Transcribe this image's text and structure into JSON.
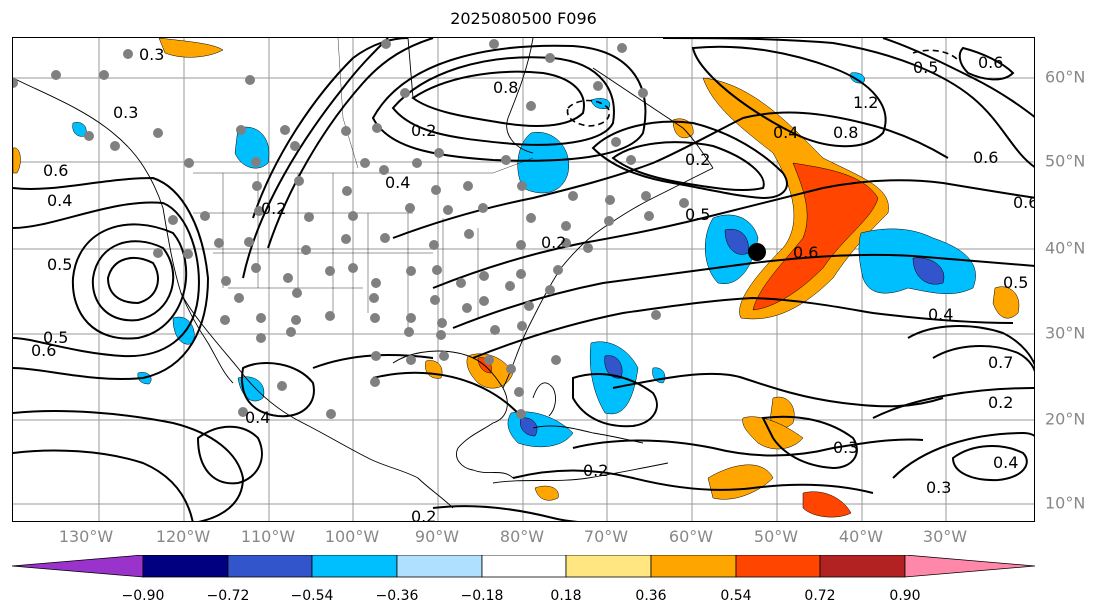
{
  "title": "2025080500 F096",
  "map": {
    "longitude_labels": [
      "130°W",
      "120°W",
      "110°W",
      "100°W",
      "90°W",
      "80°W",
      "70°W",
      "60°W",
      "50°W",
      "40°W",
      "30°W"
    ],
    "latitude_labels": [
      "60°N",
      "50°N",
      "40°N",
      "30°N",
      "20°N",
      "10°N"
    ],
    "contour_labels": [
      "0.3",
      "0.3",
      "0.8",
      "0.4",
      "0.2",
      "0.2",
      "1.2",
      "0.8",
      "0.6",
      "0.4",
      "0.2",
      "0.5",
      "0.6",
      "0.6",
      "0.4",
      "0.5",
      "0.5",
      "0.6",
      "0.4",
      "0.2",
      "0.5",
      "0.4",
      "0.3",
      "0.2",
      "0.3",
      "0.2",
      "0.4",
      "0.7",
      "0.5",
      "0.6",
      "0.6",
      "0.2"
    ],
    "marker": "storm-center"
  },
  "colorbar": {
    "colors": [
      "#9933cc",
      "#000080",
      "#3355cc",
      "#00bfff",
      "#b0e0ff",
      "#ffffff",
      "#ffe680",
      "#ffa500",
      "#ff4500",
      "#b22222",
      "#ff88aa"
    ],
    "labels": [
      "−0.90",
      "−0.72",
      "−0.54",
      "−0.36",
      "−0.18",
      "0.18",
      "0.36",
      "0.54",
      "0.72",
      "0.90"
    ]
  }
}
